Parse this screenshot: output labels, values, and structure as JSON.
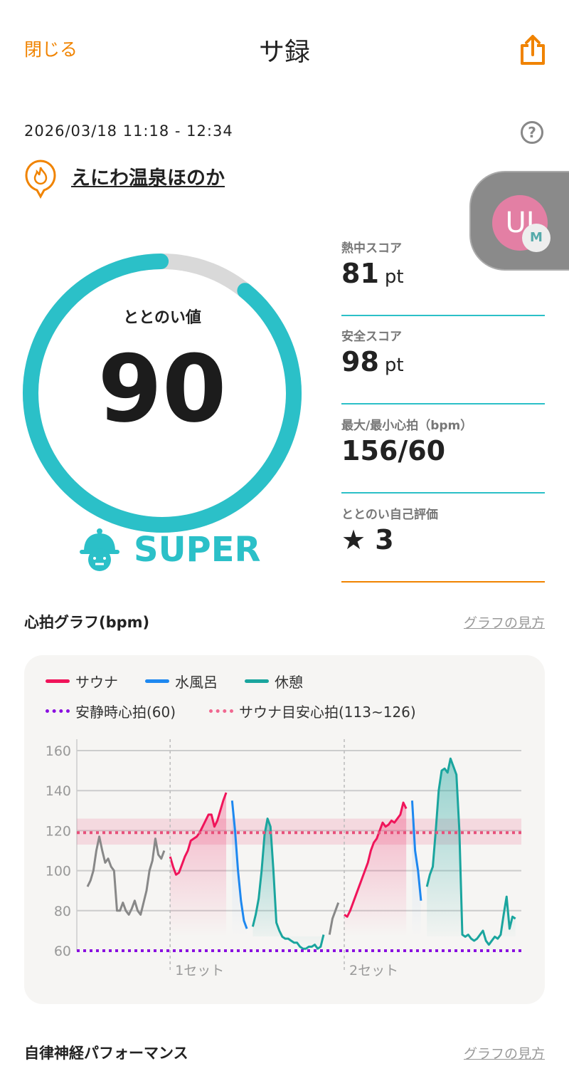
{
  "header": {
    "close_label": "閉じる",
    "title": "サ録",
    "share_icon": "share-icon"
  },
  "session": {
    "datetime": "2026/03/18 11:18 - 12:34",
    "help_icon": "?",
    "venue": "えにわ温泉ほのか",
    "venue_icon": "sauna-flame-pin-icon"
  },
  "widget": {
    "avatar_text": "UI",
    "badge_text": "M"
  },
  "gauge": {
    "label": "ととのい値",
    "value": "90",
    "percent": 90,
    "color": "#2bc0c8",
    "track_color": "#d9d9d9"
  },
  "rank": {
    "label": "SUPER",
    "icon": "sauna-hat-icon"
  },
  "stats": [
    {
      "label": "熱中スコア",
      "value": "81",
      "unit": "pt"
    },
    {
      "label": "安全スコア",
      "value": "98",
      "unit": "pt"
    },
    {
      "label": "最大/最小心拍（bpm）",
      "value": "156/60",
      "unit": ""
    },
    {
      "label": "ととのい自己評価",
      "value": "★ 3",
      "unit": ""
    }
  ],
  "heart_section": {
    "title": "心拍グラフ(bpm)",
    "link": "グラフの見方"
  },
  "autonomic_section": {
    "title": "自律神経パフォーマンス",
    "link": "グラフの見方"
  },
  "chart_data": {
    "type": "line",
    "legend": [
      {
        "name": "サウナ",
        "color": "#f0145a"
      },
      {
        "name": "水風呂",
        "color": "#1e88f0"
      },
      {
        "name": "休憩",
        "color": "#1aa59e"
      },
      {
        "name": "安静時心拍(60)",
        "color": "#8a10e0",
        "style": "dotted"
      },
      {
        "name": "サウナ目安心拍(113~126)",
        "color": "#f06890",
        "style": "dotted"
      }
    ],
    "ylim": [
      60,
      160
    ],
    "yticks": [
      60,
      80,
      100,
      120,
      140,
      160
    ],
    "resting_hr": 60,
    "target_band": [
      113,
      126
    ],
    "target_line": 119,
    "set_labels": [
      "1セット",
      "2セット"
    ],
    "grid": true,
    "segments": [
      {
        "phase": "other",
        "color": "#888888",
        "values": [
          92,
          95,
          100,
          110,
          117,
          110,
          104,
          106,
          102,
          100,
          80,
          80,
          84,
          80,
          78,
          81,
          85,
          80,
          78,
          84,
          90,
          100,
          105,
          116,
          108,
          106,
          110
        ]
      },
      {
        "phase": "sauna",
        "color": "#f0145a",
        "values": [
          107,
          102,
          98,
          99,
          103,
          107,
          110,
          115,
          116,
          117,
          119,
          122,
          125,
          128,
          128,
          122,
          125,
          130,
          135,
          139
        ]
      },
      {
        "phase": "cold",
        "color": "#1e88f0",
        "values": [
          135,
          120,
          100,
          85,
          75,
          71
        ]
      },
      {
        "phase": "rest",
        "color": "#1aa59e",
        "values": [
          72,
          78,
          86,
          100,
          118,
          126,
          122,
          100,
          74,
          70,
          67,
          66,
          66,
          65,
          64,
          64,
          62,
          61,
          61,
          62,
          62,
          63,
          61,
          62,
          68
        ]
      },
      {
        "phase": "other",
        "color": "#888888",
        "values": [
          68,
          76,
          80,
          84
        ]
      },
      {
        "phase": "sauna",
        "color": "#f0145a",
        "values": [
          78,
          77,
          80,
          84,
          88,
          92,
          96,
          100,
          104,
          110,
          114,
          116,
          120,
          124,
          122,
          123,
          125,
          124,
          126,
          128,
          134,
          131
        ]
      },
      {
        "phase": "cold",
        "color": "#1e88f0",
        "values": [
          135,
          110,
          100,
          85
        ]
      },
      {
        "phase": "rest",
        "color": "#1aa59e",
        "values": [
          92,
          98,
          102,
          120,
          140,
          150,
          151,
          149,
          156,
          152,
          148,
          120,
          68,
          67,
          68,
          66,
          65,
          66,
          68,
          70,
          65,
          63,
          65,
          67,
          66,
          68,
          78,
          87,
          71,
          77,
          76
        ]
      }
    ]
  }
}
